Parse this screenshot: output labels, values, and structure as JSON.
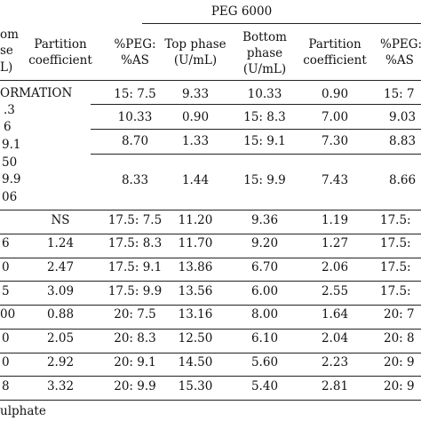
{
  "table": {
    "group_header": "PEG 6000",
    "left_header": {
      "line1": "om",
      "line2": "se",
      "line3": "L)"
    },
    "columns": [
      {
        "line1": "Partition",
        "line2": "coefficient"
      },
      {
        "line1": "%PEG:",
        "line2": "%AS"
      },
      {
        "line1": "Top phase",
        "line2": "(U/mL)"
      },
      {
        "line1": "Bottom",
        "line2": "phase",
        "line3": "(U/mL)"
      },
      {
        "line1": "Partition",
        "line2": "coefficient"
      },
      {
        "line1": "%PEG:",
        "line2": "%AS"
      }
    ],
    "block_label": "ORMATION",
    "block_left_values": [
      ".3",
      "6",
      "9.1",
      "50",
      "9.9",
      "06"
    ],
    "block_rows": [
      {
        "ratio": "15: 7.5",
        "top": "9.33",
        "bottom": "10.33",
        "pc": "0.90",
        "ratio2": "15: 7"
      },
      {
        "ratio": "10.33",
        "top": "0.90",
        "bottom": "15: 8.3",
        "pc": "7.00",
        "ratio2": "9.03"
      },
      {
        "ratio": "8.70",
        "top": "1.33",
        "bottom": "15: 9.1",
        "pc": "7.30",
        "ratio2": "8.83"
      },
      {
        "ratio": "8.33",
        "top": "1.44",
        "bottom": "15: 9.9",
        "pc": "7.43",
        "ratio2": "8.66"
      }
    ],
    "rows": [
      {
        "left": "",
        "pc": "NS",
        "ratio": "17.5: 7.5",
        "top": "11.20",
        "bottom": "9.36",
        "pc2": "1.19",
        "ratio2": "17.5:"
      },
      {
        "left": "6",
        "pc": "1.24",
        "ratio": "17.5: 8.3",
        "top": "11.70",
        "bottom": "9.20",
        "pc2": "1.27",
        "ratio2": "17.5:"
      },
      {
        "left": "0",
        "pc": "2.47",
        "ratio": "17.5: 9.1",
        "top": "13.86",
        "bottom": "6.70",
        "pc2": "2.06",
        "ratio2": "17.5:"
      },
      {
        "left": "5",
        "pc": "3.09",
        "ratio": "17.5: 9.9",
        "top": "13.56",
        "bottom": "6.00",
        "pc2": "2.55",
        "ratio2": "17.5:"
      },
      {
        "left": "00",
        "pc": "0.88",
        "ratio": "20: 7.5",
        "top": "13.16",
        "bottom": "8.00",
        "pc2": "1.64",
        "ratio2": "20: 7"
      },
      {
        "left": "0",
        "pc": "2.05",
        "ratio": "20: 8.3",
        "top": "12.50",
        "bottom": "6.10",
        "pc2": "2.04",
        "ratio2": "20: 8"
      },
      {
        "left": "0",
        "pc": "2.92",
        "ratio": "20: 9.1",
        "top": "14.50",
        "bottom": "5.60",
        "pc2": "2.23",
        "ratio2": "20: 9"
      },
      {
        "left": "8",
        "pc": "3.32",
        "ratio": "20: 9.9",
        "top": "15.30",
        "bottom": "5.40",
        "pc2": "2.81",
        "ratio2": "20: 9"
      }
    ],
    "footnote": "ulphate"
  }
}
